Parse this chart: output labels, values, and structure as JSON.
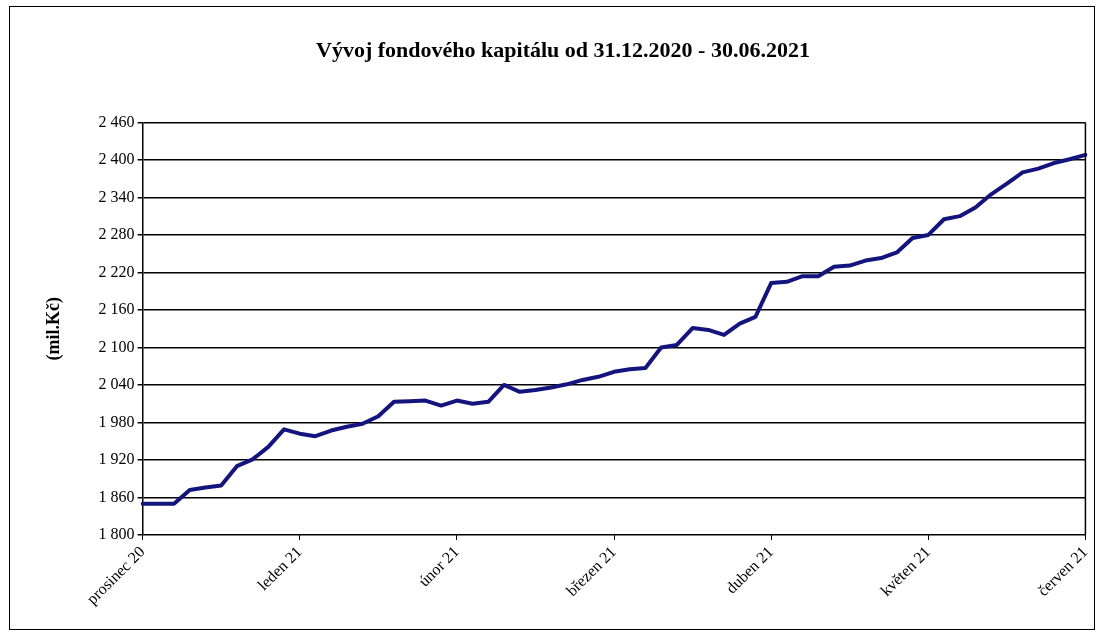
{
  "chart_data": {
    "type": "line",
    "title": "Vývoj fondového kapitálu od 31.12.2020 - 30.06.2021",
    "ylabel": "(mil.Kč)",
    "categories": [
      "prosinec 20",
      null,
      null,
      null,
      null,
      null,
      null,
      null,
      null,
      null,
      "leden 21",
      null,
      null,
      null,
      null,
      null,
      null,
      null,
      null,
      null,
      "únor 21",
      null,
      null,
      null,
      null,
      null,
      null,
      null,
      null,
      null,
      "březen 21",
      null,
      null,
      null,
      null,
      null,
      null,
      null,
      null,
      null,
      "duben 21",
      null,
      null,
      null,
      null,
      null,
      null,
      null,
      null,
      null,
      "květen 21",
      null,
      null,
      null,
      null,
      null,
      null,
      null,
      null,
      null,
      "červen 21"
    ],
    "ylim": [
      1800,
      2460
    ],
    "yticks": [
      {
        "value": 1800,
        "label": "1 800"
      },
      {
        "value": 1860,
        "label": "1 860"
      },
      {
        "value": 1920,
        "label": "1 920"
      },
      {
        "value": 1980,
        "label": "1 980"
      },
      {
        "value": 2040,
        "label": "2 040"
      },
      {
        "value": 2100,
        "label": "2 100"
      },
      {
        "value": 2160,
        "label": "2 160"
      },
      {
        "value": 2220,
        "label": "2 220"
      },
      {
        "value": 2280,
        "label": "2 280"
      },
      {
        "value": 2340,
        "label": "2 340"
      },
      {
        "value": 2400,
        "label": "2 400"
      },
      {
        "value": 2460,
        "label": "2 460"
      }
    ],
    "grid": "y",
    "legend": false,
    "marker": "none",
    "line_style": "solid",
    "series": [
      {
        "color": "#14147f",
        "values": [
          1850,
          1850,
          1850,
          1872,
          1876,
          1879,
          1910,
          1921,
          1941,
          1969,
          1962,
          1958,
          1967,
          1973,
          1978,
          1990,
          2013,
          2014,
          2015,
          2007,
          2015,
          2010,
          2013,
          2040,
          2029,
          2032,
          2036,
          2041,
          2048,
          2053,
          2061,
          2065,
          2067,
          2100,
          2104,
          2131,
          2128,
          2120,
          2138,
          2149,
          2203,
          2205,
          2214,
          2214,
          2229,
          2231,
          2239,
          2243,
          2252,
          2275,
          2280,
          2305,
          2310,
          2324,
          2345,
          2362,
          2380,
          2386,
          2395,
          2401,
          2408
        ]
      }
    ]
  }
}
